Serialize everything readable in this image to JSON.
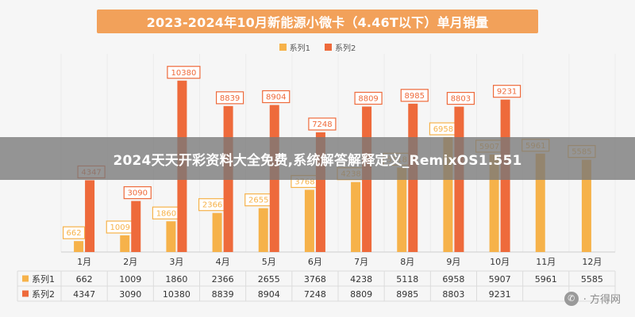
{
  "title": "2023-2024年10月新能源小微卡（4.46T以下）单月销量",
  "banner_text": "2024天天开彩资料大全免费,系统解答解释定义_RemixOS1.551",
  "watermark": {
    "text": "· 方得网",
    "icon": "wechat-icon"
  },
  "colors": {
    "series1": "#f6b24a",
    "series2": "#ee6a3b",
    "title_bg": "#f2a15a"
  },
  "chart_data": {
    "type": "bar",
    "categories": [
      "1月",
      "2月",
      "3月",
      "4月",
      "5月",
      "6月",
      "7月",
      "8月",
      "9月",
      "10月",
      "11月",
      "12月"
    ],
    "series": [
      {
        "name": "系列1",
        "values": [
          662,
          1009,
          1860,
          2366,
          2655,
          3768,
          4238,
          5118,
          6958,
          5907,
          5961,
          5585
        ]
      },
      {
        "name": "系列2",
        "values": [
          4347,
          3090,
          10380,
          8839,
          8904,
          7248,
          8809,
          8985,
          8803,
          9231,
          null,
          null
        ]
      }
    ],
    "table_rows": [
      {
        "label": "系列1",
        "values": [
          "662",
          "1009",
          "1860",
          "2366",
          "2655",
          "3768",
          "4238",
          "5118",
          "6958",
          "5907",
          "5961",
          "5585"
        ]
      },
      {
        "label": "系列2",
        "values": [
          "4347",
          "3090",
          "10380",
          "8839",
          "8904",
          "7248",
          "8809",
          "8985",
          "8803",
          "9231",
          "",
          ""
        ]
      }
    ],
    "ylim": [
      0,
      12000
    ],
    "grid": true,
    "legend_position": "top"
  }
}
